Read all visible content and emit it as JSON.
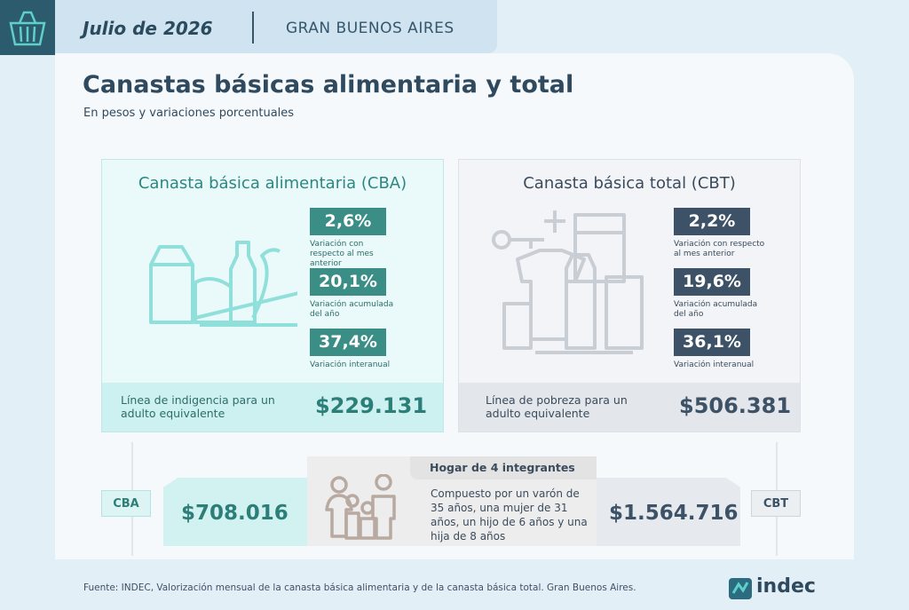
{
  "header": {
    "date": "Julio de 2026",
    "region": "GRAN BUENOS AIRES"
  },
  "title": "Canastas básicas alimentaria y total",
  "subtitle": "En pesos y variaciones porcentuales",
  "cba": {
    "title": "Canasta básica alimentaria (CBA)",
    "stats": [
      {
        "value": "2,6%",
        "label": "Variación con respecto al mes anterior"
      },
      {
        "value": "20,1%",
        "label": "Variación acumulada del año"
      },
      {
        "value": "37,4%",
        "label": "Variación interanual"
      }
    ],
    "line_label": "Línea de indigencia para un adulto equivalente",
    "line_value": "$229.131"
  },
  "cbt": {
    "title": "Canasta básica total (CBT)",
    "stats": [
      {
        "value": "2,2%",
        "label": "Variación con respecto al mes anterior"
      },
      {
        "value": "19,6%",
        "label": "Variación acumulada del año"
      },
      {
        "value": "36,1%",
        "label": "Variación interanual"
      }
    ],
    "line_label": "Línea de pobreza para un adulto equivalente",
    "line_value": "$506.381"
  },
  "household": {
    "cba_tag": "CBA",
    "cba_value": "$708.016",
    "title": "Hogar de 4 integrantes",
    "description": "Compuesto por un varón de 35 años, una mujer de 31 años, un hijo de 6 años y una hija de 8 años",
    "cbt_value": "$1.564.716",
    "cbt_tag": "CBT"
  },
  "footer": {
    "source": "Fuente: INDEC, Valorización mensual de la canasta básica alimentaria y de la canasta básica total. Gran Buenos Aires.",
    "logo": "indec"
  }
}
